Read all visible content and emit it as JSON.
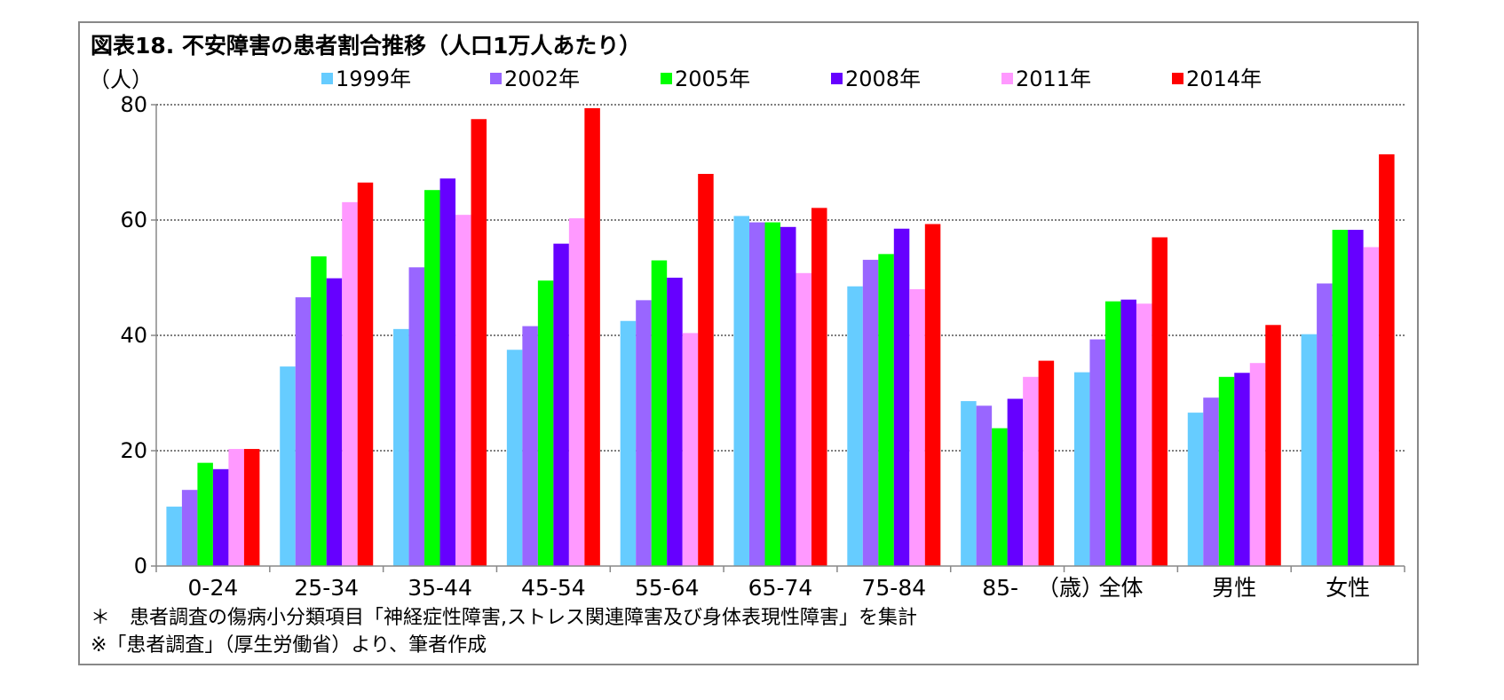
{
  "chart_data": {
    "type": "bar",
    "title": "図表18. 不安障害の患者割合推移（人口1万人あたり）",
    "ylabel": "（人）",
    "age_unit_label": "（歳）",
    "ylim": [
      0,
      80
    ],
    "yticks": [
      0,
      20,
      40,
      60,
      80
    ],
    "grid": true,
    "legend_position": "top",
    "categories": [
      "0-24",
      "25-34",
      "35-44",
      "45-54",
      "55-64",
      "65-74",
      "75-84",
      "85-",
      "全体",
      "男性",
      "女性"
    ],
    "series": [
      {
        "name": "1999年",
        "color": "#66CCFF",
        "values": [
          10.3,
          34.6,
          41.1,
          37.5,
          42.5,
          60.7,
          48.5,
          28.6,
          33.6,
          26.6,
          40.2
        ]
      },
      {
        "name": "2002年",
        "color": "#9966FF",
        "values": [
          13.2,
          46.6,
          51.8,
          41.6,
          46.1,
          59.6,
          53.1,
          27.8,
          39.3,
          29.2,
          49.0
        ]
      },
      {
        "name": "2005年",
        "color": "#00FF00",
        "values": [
          17.9,
          53.7,
          65.2,
          49.5,
          53.0,
          59.6,
          54.1,
          23.9,
          45.9,
          32.8,
          58.3
        ]
      },
      {
        "name": "2008年",
        "color": "#6600FF",
        "values": [
          16.8,
          49.9,
          67.2,
          55.9,
          50.0,
          58.8,
          58.5,
          29.0,
          46.2,
          33.5,
          58.3
        ]
      },
      {
        "name": "2011年",
        "color": "#FF99FF",
        "values": [
          20.3,
          63.1,
          60.9,
          60.3,
          40.4,
          50.8,
          48.0,
          32.8,
          45.5,
          35.2,
          55.3
        ]
      },
      {
        "name": "2014年",
        "color": "#FF0000",
        "values": [
          20.3,
          66.5,
          77.5,
          79.4,
          68.0,
          62.1,
          59.3,
          35.6,
          57.0,
          41.8,
          71.4
        ]
      }
    ]
  },
  "notes": [
    "＊　患者調査の傷病小分類項目「神経症性障害,ストレス関連障害及び身体表現性障害」を集計",
    "※「患者調査」（厚生労働省）より、筆者作成"
  ]
}
